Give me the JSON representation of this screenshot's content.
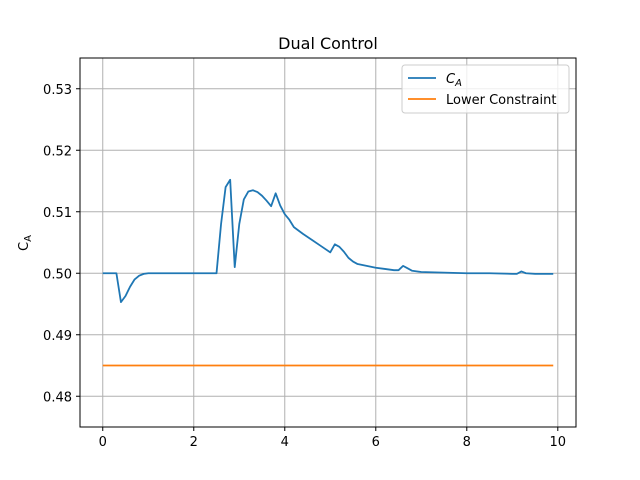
{
  "chart_data": {
    "type": "line",
    "title": "Dual Control",
    "xlabel": "",
    "ylabel": "C_A",
    "xlim": [
      -0.5,
      10.4
    ],
    "ylim": [
      0.475,
      0.535
    ],
    "xticks": [
      0,
      2,
      4,
      6,
      8,
      10
    ],
    "xtick_labels": [
      "0",
      "2",
      "4",
      "6",
      "8",
      "10"
    ],
    "yticks": [
      0.48,
      0.49,
      0.5,
      0.51,
      0.52,
      0.53
    ],
    "ytick_labels": [
      "0.48",
      "0.49",
      "0.50",
      "0.51",
      "0.52",
      "0.53"
    ],
    "grid": true,
    "legend_position": "top-right",
    "series": [
      {
        "name": "C_A",
        "color": "#1f77b4",
        "x": [
          0,
          0.3,
          0.4,
          0.5,
          0.6,
          0.7,
          0.8,
          0.9,
          1.0,
          1.2,
          1.5,
          2.0,
          2.5,
          2.6,
          2.7,
          2.8,
          2.9,
          3.0,
          3.1,
          3.2,
          3.3,
          3.4,
          3.5,
          3.6,
          3.7,
          3.8,
          3.9,
          4.0,
          4.1,
          4.2,
          4.4,
          4.6,
          4.8,
          5.0,
          5.1,
          5.2,
          5.3,
          5.4,
          5.5,
          5.6,
          5.8,
          6.0,
          6.2,
          6.4,
          6.5,
          6.6,
          6.7,
          6.8,
          7.0,
          7.5,
          8.0,
          8.5,
          9.0,
          9.1,
          9.2,
          9.3,
          9.5,
          9.7,
          9.9
        ],
        "y": [
          0.5,
          0.5,
          0.4953,
          0.4963,
          0.4978,
          0.499,
          0.4996,
          0.4999,
          0.5,
          0.5,
          0.5,
          0.5,
          0.5,
          0.508,
          0.514,
          0.5152,
          0.501,
          0.508,
          0.512,
          0.5133,
          0.5135,
          0.5132,
          0.5126,
          0.5118,
          0.5109,
          0.513,
          0.511,
          0.5096,
          0.5087,
          0.5075,
          0.5064,
          0.5054,
          0.5044,
          0.5034,
          0.5047,
          0.5043,
          0.5035,
          0.5025,
          0.5019,
          0.5015,
          0.5012,
          0.5009,
          0.5007,
          0.5005,
          0.5005,
          0.5012,
          0.5008,
          0.5004,
          0.5002,
          0.5001,
          0.5,
          0.5,
          0.4999,
          0.4999,
          0.5003,
          0.5,
          0.4999,
          0.4999,
          0.4999
        ]
      },
      {
        "name": "Lower Constraint",
        "color": "#ff7f0e",
        "x": [
          0,
          9.9
        ],
        "y": [
          0.485,
          0.485
        ]
      }
    ]
  }
}
